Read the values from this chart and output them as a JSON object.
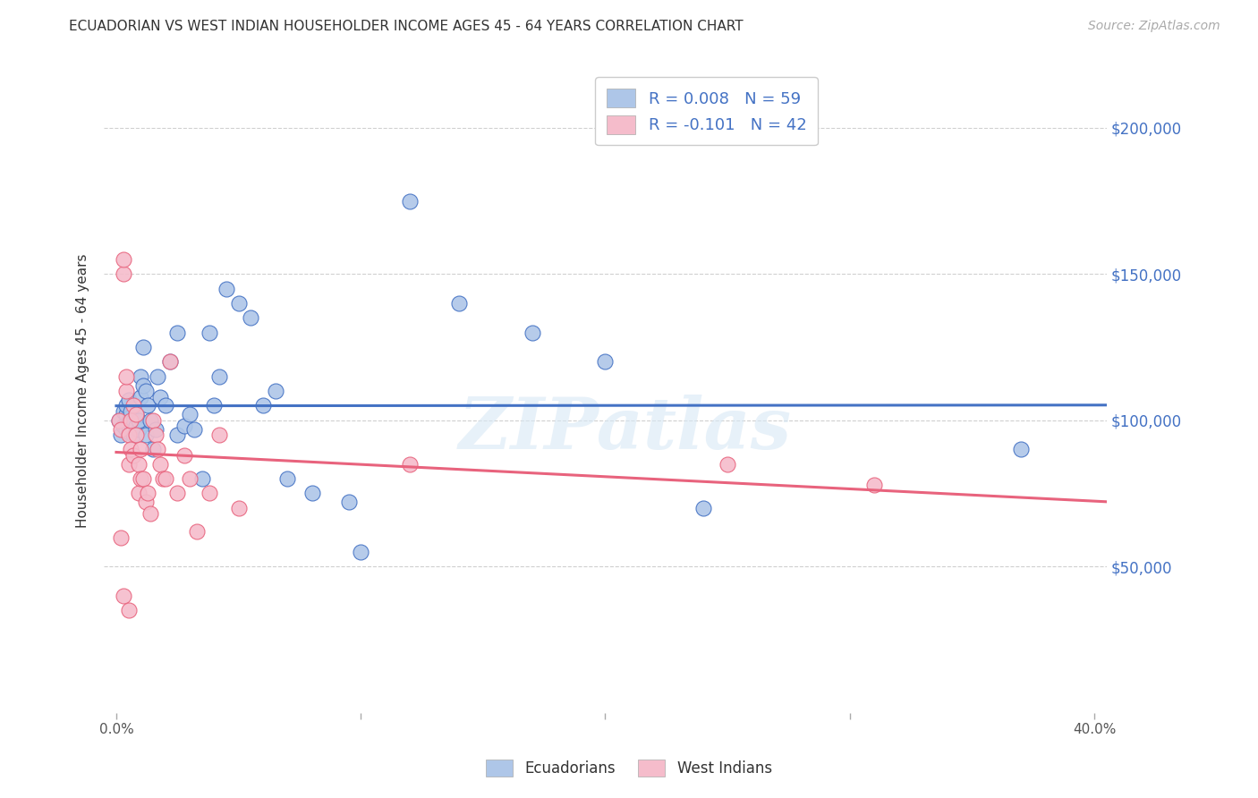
{
  "title": "ECUADORIAN VS WEST INDIAN HOUSEHOLDER INCOME AGES 45 - 64 YEARS CORRELATION CHART",
  "source": "Source: ZipAtlas.com",
  "ylabel": "Householder Income Ages 45 - 64 years",
  "xlim": [
    -0.005,
    0.405
  ],
  "ylim": [
    0,
    220000
  ],
  "ytick_labels": [
    "$50,000",
    "$100,000",
    "$150,000",
    "$200,000"
  ],
  "ytick_values": [
    50000,
    100000,
    150000,
    200000
  ],
  "xtick_labels": [
    "0.0%",
    "",
    "",
    "",
    "40.0%"
  ],
  "xtick_values": [
    0.0,
    0.1,
    0.2,
    0.3,
    0.4
  ],
  "r_ecuadorian": 0.008,
  "n_ecuadorian": 59,
  "r_west_indian": -0.101,
  "n_west_indian": 42,
  "ecuadorian_color": "#aec6e8",
  "west_indian_color": "#f5bccb",
  "line_ecuadorian_color": "#4472c4",
  "line_west_indian_color": "#e8637d",
  "background_color": "#ffffff",
  "grid_color": "#cccccc",
  "watermark": "ZIPatlas",
  "legend_r_color": "#4472c4",
  "ecuadorian_x": [
    0.001,
    0.002,
    0.003,
    0.003,
    0.004,
    0.004,
    0.004,
    0.005,
    0.005,
    0.005,
    0.005,
    0.006,
    0.006,
    0.006,
    0.007,
    0.007,
    0.007,
    0.008,
    0.008,
    0.009,
    0.009,
    0.01,
    0.01,
    0.011,
    0.011,
    0.012,
    0.012,
    0.013,
    0.014,
    0.015,
    0.016,
    0.017,
    0.018,
    0.02,
    0.022,
    0.025,
    0.025,
    0.028,
    0.03,
    0.032,
    0.035,
    0.038,
    0.04,
    0.042,
    0.045,
    0.05,
    0.055,
    0.06,
    0.065,
    0.07,
    0.08,
    0.095,
    0.1,
    0.12,
    0.14,
    0.17,
    0.2,
    0.24,
    0.37
  ],
  "ecuadorian_y": [
    100000,
    95000,
    98000,
    103000,
    97000,
    102000,
    105000,
    96000,
    100000,
    98000,
    107000,
    99000,
    101000,
    103000,
    97000,
    100000,
    95000,
    98000,
    102000,
    97000,
    100000,
    115000,
    108000,
    112000,
    125000,
    110000,
    95000,
    105000,
    100000,
    90000,
    97000,
    115000,
    108000,
    105000,
    120000,
    130000,
    95000,
    98000,
    102000,
    97000,
    80000,
    130000,
    105000,
    115000,
    145000,
    140000,
    135000,
    105000,
    110000,
    80000,
    75000,
    72000,
    55000,
    175000,
    140000,
    130000,
    120000,
    70000,
    90000
  ],
  "west_indian_x": [
    0.001,
    0.002,
    0.003,
    0.003,
    0.004,
    0.004,
    0.005,
    0.005,
    0.006,
    0.006,
    0.007,
    0.007,
    0.008,
    0.008,
    0.009,
    0.009,
    0.01,
    0.01,
    0.011,
    0.012,
    0.013,
    0.014,
    0.015,
    0.016,
    0.017,
    0.018,
    0.019,
    0.02,
    0.022,
    0.025,
    0.028,
    0.03,
    0.033,
    0.038,
    0.042,
    0.05,
    0.12,
    0.25,
    0.31,
    0.002,
    0.003,
    0.005
  ],
  "west_indian_y": [
    100000,
    97000,
    150000,
    155000,
    110000,
    115000,
    95000,
    85000,
    100000,
    90000,
    88000,
    105000,
    95000,
    102000,
    85000,
    75000,
    90000,
    80000,
    80000,
    72000,
    75000,
    68000,
    100000,
    95000,
    90000,
    85000,
    80000,
    80000,
    120000,
    75000,
    88000,
    80000,
    62000,
    75000,
    95000,
    70000,
    85000,
    85000,
    78000,
    60000,
    40000,
    35000
  ]
}
